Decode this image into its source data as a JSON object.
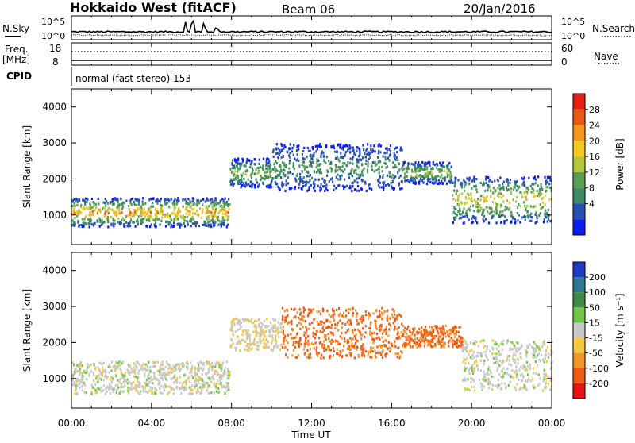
{
  "header": {
    "station": "Hokkaido West (fitACF)",
    "beam": "Beam 06",
    "date": "20/Jan/2016"
  },
  "noise_panel": {
    "left_label": "N.Sky",
    "right_label": "N.Search",
    "left_ticks": [
      "10^5",
      "10^0"
    ],
    "right_ticks": [
      "10^5",
      "10^0"
    ]
  },
  "freq_panel": {
    "left_label_1": "Freq.",
    "left_label_2": "[MHz]",
    "right_label": "Nave",
    "left_ticks": [
      "18",
      "8"
    ],
    "right_ticks": [
      "60",
      "0"
    ]
  },
  "cpid": {
    "label": "CPID",
    "text": "normal (fast stereo) 153"
  },
  "chart_data": [
    {
      "type": "heatmap",
      "parameter": "power",
      "xlabel": "Time UT",
      "ylabel": "Slant Range [km]",
      "xlim_hours": [
        0,
        24
      ],
      "ylim": [
        180,
        4500
      ],
      "x_ticks": [
        "00:00",
        "04:00",
        "08:00",
        "12:00",
        "16:00",
        "20:00",
        "00:00"
      ],
      "y_ticks": [
        1000,
        2000,
        3000,
        4000
      ],
      "colorbar": {
        "label": "Power [dB]",
        "range": [
          0,
          32
        ],
        "ticks": [
          4,
          8,
          12,
          16,
          20,
          24,
          28
        ],
        "colors": [
          "#0a1ef0",
          "#2850b4",
          "#3c8c64",
          "#5aa050",
          "#b4c83c",
          "#f5c81e",
          "#f5961e",
          "#eb5a14",
          "#e61e14"
        ]
      },
      "regions": [
        {
          "from_h": 0.0,
          "to_h": 7.9,
          "range_km": [
            700,
            1500
          ],
          "peak_db": 24
        },
        {
          "from_h": 7.9,
          "to_h": 10.0,
          "range_km": [
            1800,
            2600
          ],
          "peak_db": 14
        },
        {
          "from_h": 10.0,
          "to_h": 16.5,
          "range_km": [
            1700,
            3000
          ],
          "peak_db": 10
        },
        {
          "from_h": 16.5,
          "to_h": 19.0,
          "range_km": [
            1900,
            2500
          ],
          "peak_db": 16
        },
        {
          "from_h": 19.0,
          "to_h": 24.0,
          "range_km": [
            800,
            2100
          ],
          "peak_db": 20
        }
      ]
    },
    {
      "type": "heatmap",
      "parameter": "velocity",
      "xlabel": "Time UT",
      "ylabel": "Slant Range [km]",
      "xlim_hours": [
        0,
        24
      ],
      "ylim": [
        180,
        4500
      ],
      "x_ticks": [
        "00:00",
        "04:00",
        "08:00",
        "12:00",
        "16:00",
        "20:00",
        "00:00"
      ],
      "y_ticks": [
        1000,
        2000,
        3000,
        4000
      ],
      "colorbar": {
        "label": "Velocity [m s⁻¹]",
        "ticks": [
          "200",
          "100",
          "50",
          "15",
          "-15",
          "-50",
          "-100",
          "-200"
        ],
        "colors": [
          "#1e3cc8",
          "#2e7a96",
          "#3c8c46",
          "#6ec846",
          "#c8c8c8",
          "#f5c83c",
          "#f59628",
          "#f05a14",
          "#e61414"
        ]
      },
      "regions": [
        {
          "from_h": 0.0,
          "to_h": 7.9,
          "range_km": [
            600,
            1500
          ],
          "velocity_ms": 0
        },
        {
          "from_h": 7.9,
          "to_h": 10.5,
          "range_km": [
            1800,
            2700
          ],
          "velocity_ms": -20
        },
        {
          "from_h": 10.5,
          "to_h": 16.5,
          "range_km": [
            1600,
            3000
          ],
          "velocity_ms": -150
        },
        {
          "from_h": 16.5,
          "to_h": 19.5,
          "range_km": [
            1900,
            2500
          ],
          "velocity_ms": -150
        },
        {
          "from_h": 19.5,
          "to_h": 24.0,
          "range_km": [
            700,
            2100
          ],
          "velocity_ms": 0
        }
      ]
    }
  ]
}
